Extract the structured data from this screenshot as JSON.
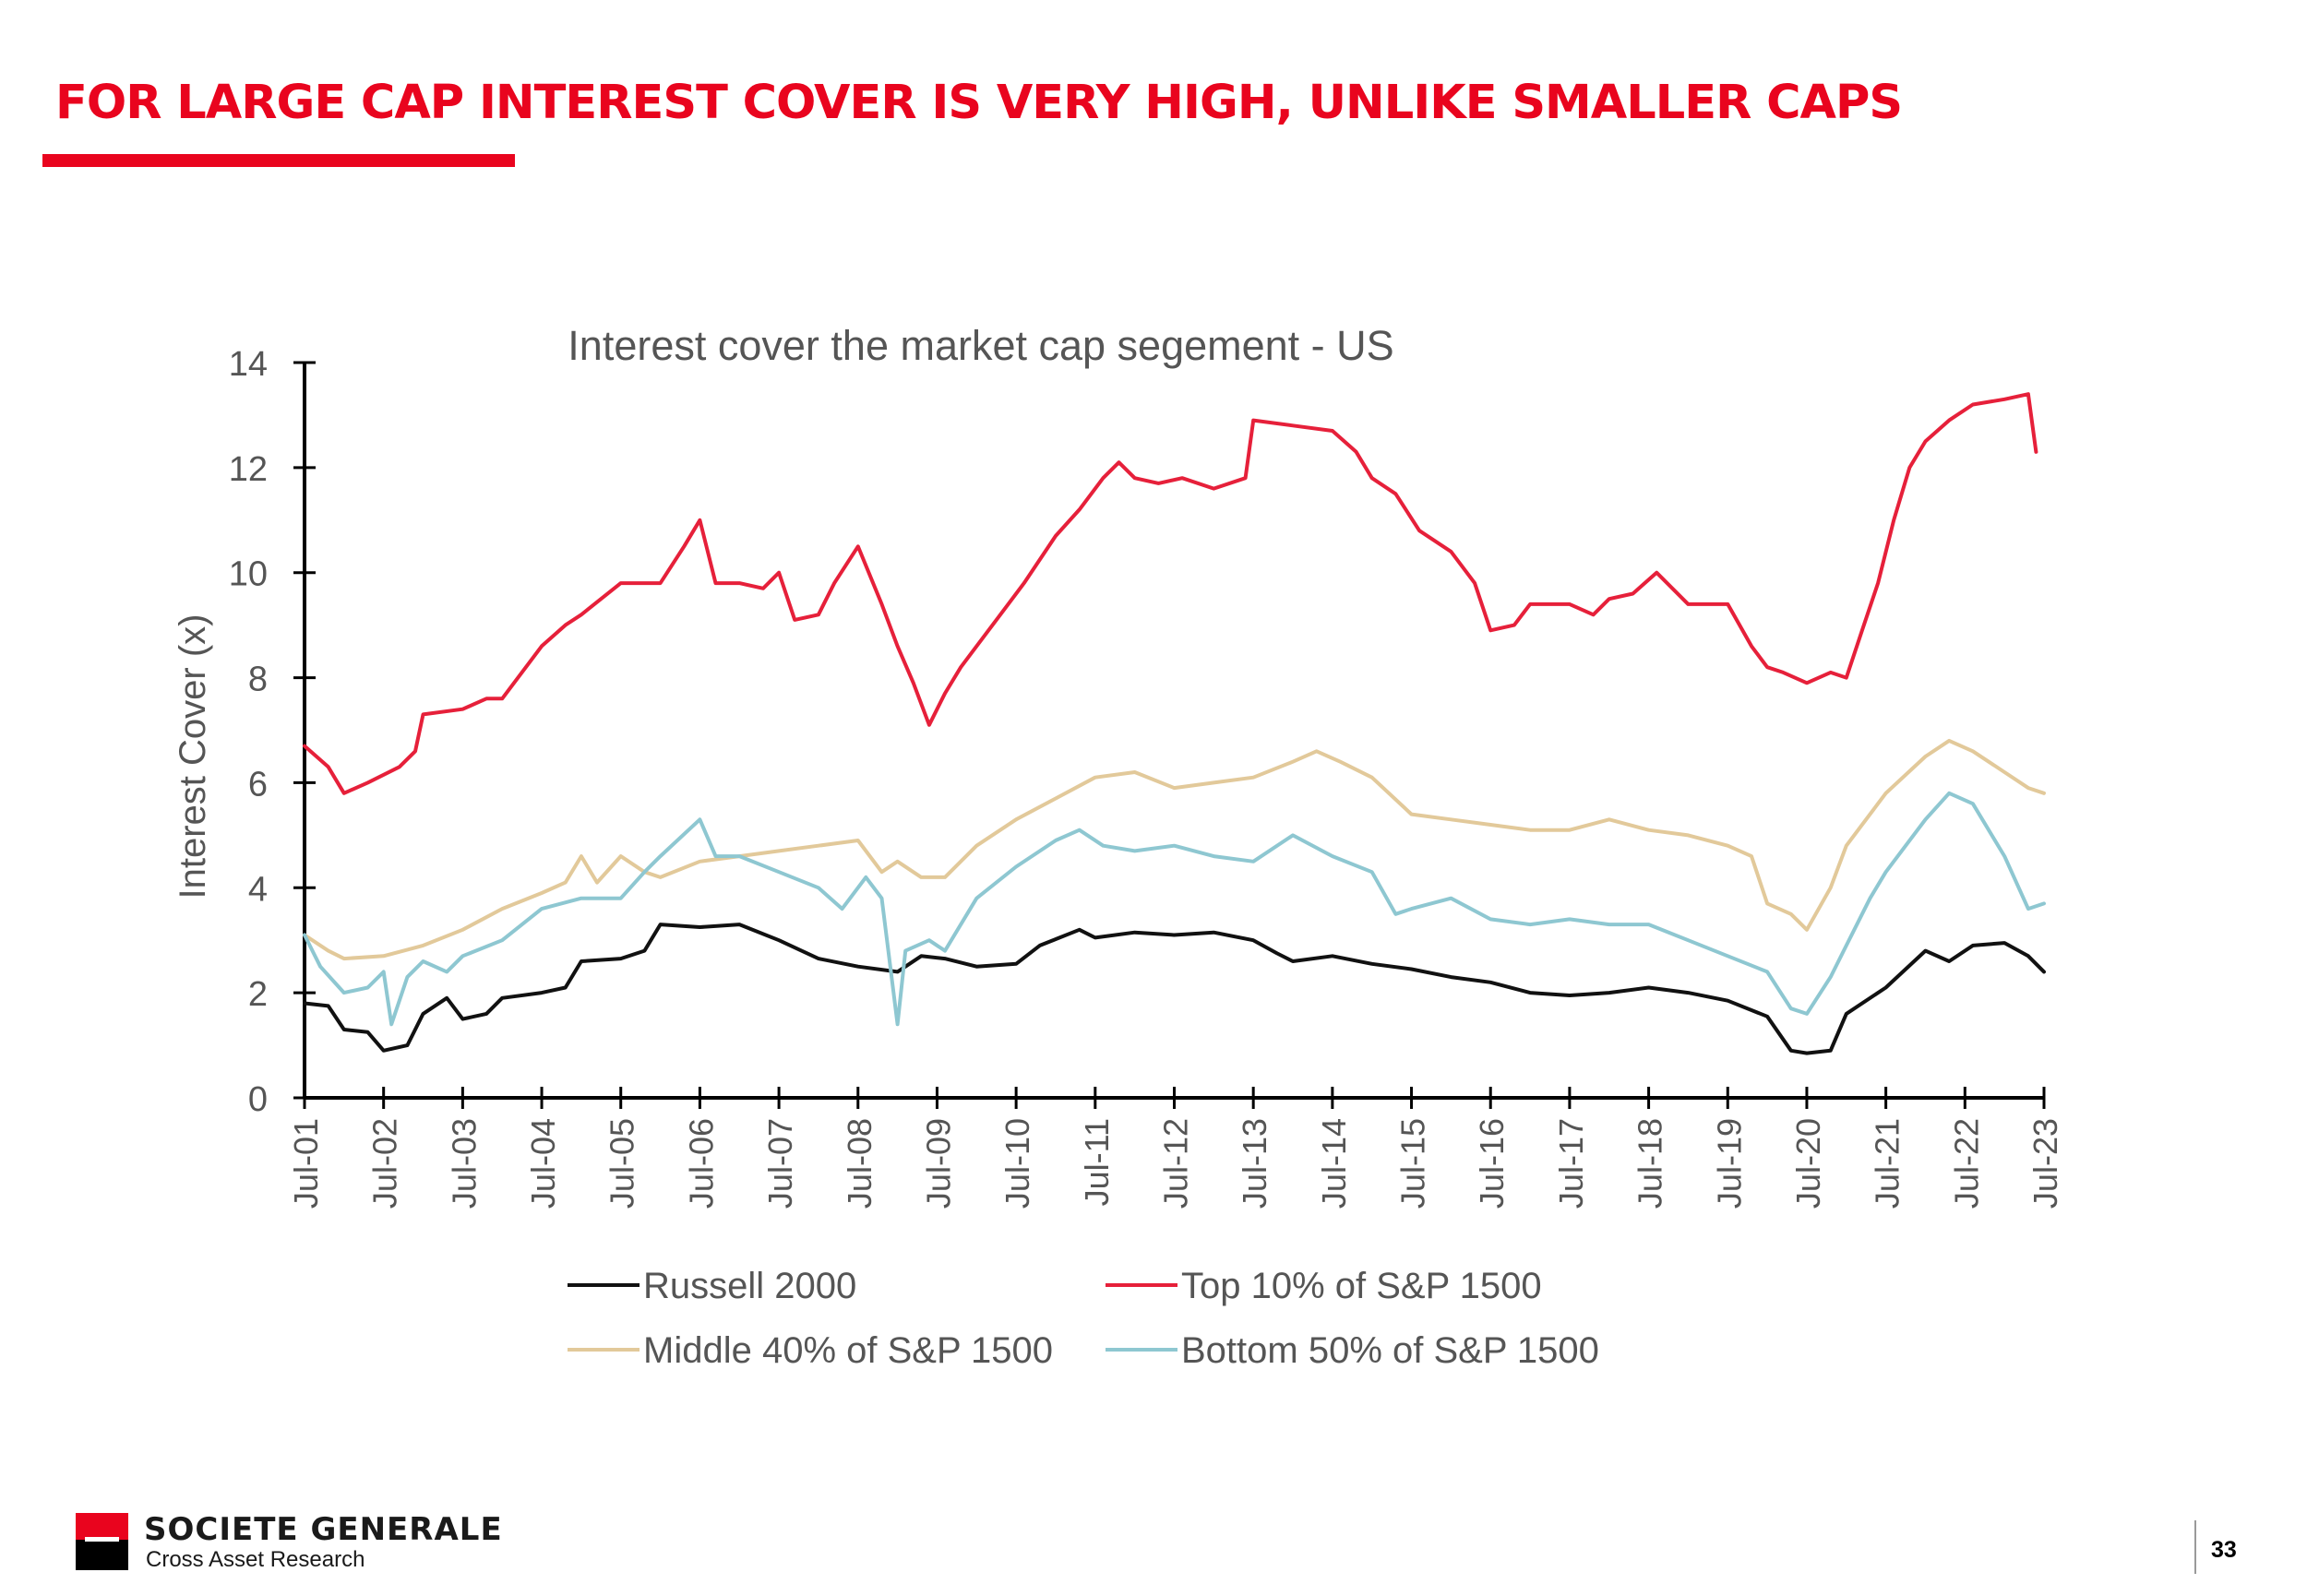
{
  "slide": {
    "title": "FOR LARGE CAP INTEREST COVER IS VERY HIGH, UNLIKE SMALLER CAPS",
    "page_number": "33",
    "accent_color": "#e9041e"
  },
  "logo": {
    "name": "SOCIETE GENERALE",
    "subtitle": "Cross Asset Research"
  },
  "chart_data": {
    "type": "line",
    "title": "Interest cover the market cap segement - US",
    "xlabel": "",
    "ylabel": "Interest Cover (x)",
    "ylim": [
      0,
      14
    ],
    "yticks": [
      0,
      2,
      4,
      6,
      8,
      10,
      12,
      14
    ],
    "xlim": [
      2001.5,
      2023.5
    ],
    "xticks": [
      "Jul-01",
      "Jul-02",
      "Jul-03",
      "Jul-04",
      "Jul-05",
      "Jul-06",
      "Jul-07",
      "Jul-08",
      "Jul-09",
      "Jul-10",
      "Jul-11",
      "Jul-12",
      "Jul-13",
      "Jul-14",
      "Jul-15",
      "Jul-16",
      "Jul-17",
      "Jul-18",
      "Jul-19",
      "Jul-20",
      "Jul-21",
      "Jul-22",
      "Jul-23"
    ],
    "grid": false,
    "legend_position": "bottom",
    "series": [
      {
        "name": "Russell 2000",
        "color": "#111111",
        "points": [
          [
            2001.5,
            1.8
          ],
          [
            2001.8,
            1.75
          ],
          [
            2002.0,
            1.3
          ],
          [
            2002.3,
            1.25
          ],
          [
            2002.5,
            0.9
          ],
          [
            2002.8,
            1.0
          ],
          [
            2003.0,
            1.6
          ],
          [
            2003.3,
            1.9
          ],
          [
            2003.5,
            1.5
          ],
          [
            2003.8,
            1.6
          ],
          [
            2004.0,
            1.9
          ],
          [
            2004.5,
            2.0
          ],
          [
            2004.8,
            2.1
          ],
          [
            2005.0,
            2.6
          ],
          [
            2005.5,
            2.65
          ],
          [
            2005.8,
            2.8
          ],
          [
            2006.0,
            3.3
          ],
          [
            2006.5,
            3.25
          ],
          [
            2007.0,
            3.3
          ],
          [
            2007.5,
            3.0
          ],
          [
            2008.0,
            2.65
          ],
          [
            2008.5,
            2.5
          ],
          [
            2009.0,
            2.4
          ],
          [
            2009.3,
            2.7
          ],
          [
            2009.6,
            2.65
          ],
          [
            2010.0,
            2.5
          ],
          [
            2010.5,
            2.55
          ],
          [
            2010.8,
            2.9
          ],
          [
            2011.3,
            3.2
          ],
          [
            2011.5,
            3.05
          ],
          [
            2012.0,
            3.15
          ],
          [
            2012.5,
            3.1
          ],
          [
            2013.0,
            3.15
          ],
          [
            2013.5,
            3.0
          ],
          [
            2013.8,
            2.75
          ],
          [
            2014.0,
            2.6
          ],
          [
            2014.5,
            2.7
          ],
          [
            2015.0,
            2.55
          ],
          [
            2015.5,
            2.45
          ],
          [
            2016.0,
            2.3
          ],
          [
            2016.5,
            2.2
          ],
          [
            2017.0,
            2.0
          ],
          [
            2017.5,
            1.95
          ],
          [
            2018.0,
            2.0
          ],
          [
            2018.5,
            2.1
          ],
          [
            2019.0,
            2.0
          ],
          [
            2019.5,
            1.85
          ],
          [
            2020.0,
            1.55
          ],
          [
            2020.3,
            0.9
          ],
          [
            2020.5,
            0.85
          ],
          [
            2020.8,
            0.9
          ],
          [
            2021.0,
            1.6
          ],
          [
            2021.5,
            2.1
          ],
          [
            2022.0,
            2.8
          ],
          [
            2022.3,
            2.6
          ],
          [
            2022.6,
            2.9
          ],
          [
            2023.0,
            2.95
          ],
          [
            2023.3,
            2.7
          ],
          [
            2023.5,
            2.4
          ]
        ]
      },
      {
        "name": "Top 10% of S&P 1500",
        "color": "#e6203a",
        "points": [
          [
            2001.5,
            6.7
          ],
          [
            2001.8,
            6.3
          ],
          [
            2002.0,
            5.8
          ],
          [
            2002.3,
            6.0
          ],
          [
            2002.7,
            6.3
          ],
          [
            2002.9,
            6.6
          ],
          [
            2003.0,
            7.3
          ],
          [
            2003.5,
            7.4
          ],
          [
            2003.8,
            7.6
          ],
          [
            2004.0,
            7.6
          ],
          [
            2004.5,
            8.6
          ],
          [
            2004.8,
            9.0
          ],
          [
            2005.0,
            9.2
          ],
          [
            2005.5,
            9.8
          ],
          [
            2006.0,
            9.8
          ],
          [
            2006.3,
            10.5
          ],
          [
            2006.5,
            11.0
          ],
          [
            2006.7,
            9.8
          ],
          [
            2007.0,
            9.8
          ],
          [
            2007.3,
            9.7
          ],
          [
            2007.5,
            10.0
          ],
          [
            2007.7,
            9.1
          ],
          [
            2008.0,
            9.2
          ],
          [
            2008.2,
            9.8
          ],
          [
            2008.5,
            10.5
          ],
          [
            2008.8,
            9.4
          ],
          [
            2009.0,
            8.6
          ],
          [
            2009.2,
            7.9
          ],
          [
            2009.4,
            7.1
          ],
          [
            2009.6,
            7.7
          ],
          [
            2009.8,
            8.2
          ],
          [
            2010.0,
            8.6
          ],
          [
            2010.3,
            9.2
          ],
          [
            2010.6,
            9.8
          ],
          [
            2011.0,
            10.7
          ],
          [
            2011.3,
            11.2
          ],
          [
            2011.6,
            11.8
          ],
          [
            2011.8,
            12.1
          ],
          [
            2012.0,
            11.8
          ],
          [
            2012.3,
            11.7
          ],
          [
            2012.6,
            11.8
          ],
          [
            2013.0,
            11.6
          ],
          [
            2013.4,
            11.8
          ],
          [
            2013.5,
            12.9
          ],
          [
            2014.0,
            12.8
          ],
          [
            2014.5,
            12.7
          ],
          [
            2014.8,
            12.3
          ],
          [
            2015.0,
            11.8
          ],
          [
            2015.3,
            11.5
          ],
          [
            2015.6,
            10.8
          ],
          [
            2016.0,
            10.4
          ],
          [
            2016.3,
            9.8
          ],
          [
            2016.5,
            8.9
          ],
          [
            2016.8,
            9.0
          ],
          [
            2017.0,
            9.4
          ],
          [
            2017.5,
            9.4
          ],
          [
            2017.8,
            9.2
          ],
          [
            2018.0,
            9.5
          ],
          [
            2018.3,
            9.6
          ],
          [
            2018.6,
            10.0
          ],
          [
            2019.0,
            9.4
          ],
          [
            2019.5,
            9.4
          ],
          [
            2019.8,
            8.6
          ],
          [
            2020.0,
            8.2
          ],
          [
            2020.2,
            8.1
          ],
          [
            2020.5,
            7.9
          ],
          [
            2020.8,
            8.1
          ],
          [
            2021.0,
            8.0
          ],
          [
            2021.2,
            8.9
          ],
          [
            2021.4,
            9.8
          ],
          [
            2021.6,
            11.0
          ],
          [
            2021.8,
            12.0
          ],
          [
            2022.0,
            12.5
          ],
          [
            2022.3,
            12.9
          ],
          [
            2022.6,
            13.2
          ],
          [
            2023.0,
            13.3
          ],
          [
            2023.3,
            13.4
          ],
          [
            2023.4,
            12.3
          ]
        ]
      },
      {
        "name": "Middle 40% of S&P 1500",
        "color": "#e2c99a",
        "points": [
          [
            2001.5,
            3.1
          ],
          [
            2001.8,
            2.8
          ],
          [
            2002.0,
            2.65
          ],
          [
            2002.5,
            2.7
          ],
          [
            2003.0,
            2.9
          ],
          [
            2003.5,
            3.2
          ],
          [
            2004.0,
            3.6
          ],
          [
            2004.5,
            3.9
          ],
          [
            2004.8,
            4.1
          ],
          [
            2005.0,
            4.6
          ],
          [
            2005.2,
            4.1
          ],
          [
            2005.5,
            4.6
          ],
          [
            2005.8,
            4.3
          ],
          [
            2006.0,
            4.2
          ],
          [
            2006.5,
            4.5
          ],
          [
            2007.0,
            4.6
          ],
          [
            2007.5,
            4.7
          ],
          [
            2008.0,
            4.8
          ],
          [
            2008.5,
            4.9
          ],
          [
            2008.8,
            4.3
          ],
          [
            2009.0,
            4.5
          ],
          [
            2009.3,
            4.2
          ],
          [
            2009.6,
            4.2
          ],
          [
            2010.0,
            4.8
          ],
          [
            2010.5,
            5.3
          ],
          [
            2011.0,
            5.7
          ],
          [
            2011.5,
            6.1
          ],
          [
            2012.0,
            6.2
          ],
          [
            2012.5,
            5.9
          ],
          [
            2013.0,
            6.0
          ],
          [
            2013.5,
            6.1
          ],
          [
            2014.0,
            6.4
          ],
          [
            2014.3,
            6.6
          ],
          [
            2014.6,
            6.4
          ],
          [
            2015.0,
            6.1
          ],
          [
            2015.5,
            5.4
          ],
          [
            2016.0,
            5.3
          ],
          [
            2016.5,
            5.2
          ],
          [
            2017.0,
            5.1
          ],
          [
            2017.5,
            5.1
          ],
          [
            2018.0,
            5.3
          ],
          [
            2018.5,
            5.1
          ],
          [
            2019.0,
            5.0
          ],
          [
            2019.5,
            4.8
          ],
          [
            2019.8,
            4.6
          ],
          [
            2020.0,
            3.7
          ],
          [
            2020.3,
            3.5
          ],
          [
            2020.5,
            3.2
          ],
          [
            2020.8,
            4.0
          ],
          [
            2021.0,
            4.8
          ],
          [
            2021.5,
            5.8
          ],
          [
            2022.0,
            6.5
          ],
          [
            2022.3,
            6.8
          ],
          [
            2022.6,
            6.6
          ],
          [
            2023.0,
            6.2
          ],
          [
            2023.3,
            5.9
          ],
          [
            2023.5,
            5.8
          ]
        ]
      },
      {
        "name": "Bottom 50% of S&P 1500",
        "color": "#8ec7d1",
        "points": [
          [
            2001.5,
            3.1
          ],
          [
            2001.7,
            2.5
          ],
          [
            2002.0,
            2.0
          ],
          [
            2002.3,
            2.1
          ],
          [
            2002.5,
            2.4
          ],
          [
            2002.6,
            1.4
          ],
          [
            2002.8,
            2.3
          ],
          [
            2003.0,
            2.6
          ],
          [
            2003.3,
            2.4
          ],
          [
            2003.5,
            2.7
          ],
          [
            2004.0,
            3.0
          ],
          [
            2004.5,
            3.6
          ],
          [
            2005.0,
            3.8
          ],
          [
            2005.5,
            3.8
          ],
          [
            2005.8,
            4.3
          ],
          [
            2006.0,
            4.6
          ],
          [
            2006.5,
            5.3
          ],
          [
            2006.7,
            4.6
          ],
          [
            2007.0,
            4.6
          ],
          [
            2007.5,
            4.3
          ],
          [
            2008.0,
            4.0
          ],
          [
            2008.3,
            3.6
          ],
          [
            2008.6,
            4.2
          ],
          [
            2008.8,
            3.8
          ],
          [
            2009.0,
            1.4
          ],
          [
            2009.1,
            2.8
          ],
          [
            2009.4,
            3.0
          ],
          [
            2009.6,
            2.8
          ],
          [
            2010.0,
            3.8
          ],
          [
            2010.5,
            4.4
          ],
          [
            2011.0,
            4.9
          ],
          [
            2011.3,
            5.1
          ],
          [
            2011.6,
            4.8
          ],
          [
            2012.0,
            4.7
          ],
          [
            2012.5,
            4.8
          ],
          [
            2013.0,
            4.6
          ],
          [
            2013.5,
            4.5
          ],
          [
            2014.0,
            5.0
          ],
          [
            2014.5,
            4.6
          ],
          [
            2015.0,
            4.3
          ],
          [
            2015.3,
            3.5
          ],
          [
            2015.5,
            3.6
          ],
          [
            2016.0,
            3.8
          ],
          [
            2016.5,
            3.4
          ],
          [
            2017.0,
            3.3
          ],
          [
            2017.5,
            3.4
          ],
          [
            2018.0,
            3.3
          ],
          [
            2018.5,
            3.3
          ],
          [
            2019.0,
            3.0
          ],
          [
            2019.5,
            2.7
          ],
          [
            2020.0,
            2.4
          ],
          [
            2020.3,
            1.7
          ],
          [
            2020.5,
            1.6
          ],
          [
            2020.8,
            2.3
          ],
          [
            2021.0,
            2.9
          ],
          [
            2021.3,
            3.8
          ],
          [
            2021.5,
            4.3
          ],
          [
            2022.0,
            5.3
          ],
          [
            2022.3,
            5.8
          ],
          [
            2022.6,
            5.6
          ],
          [
            2023.0,
            4.6
          ],
          [
            2023.3,
            3.6
          ],
          [
            2023.5,
            3.7
          ]
        ]
      }
    ]
  }
}
